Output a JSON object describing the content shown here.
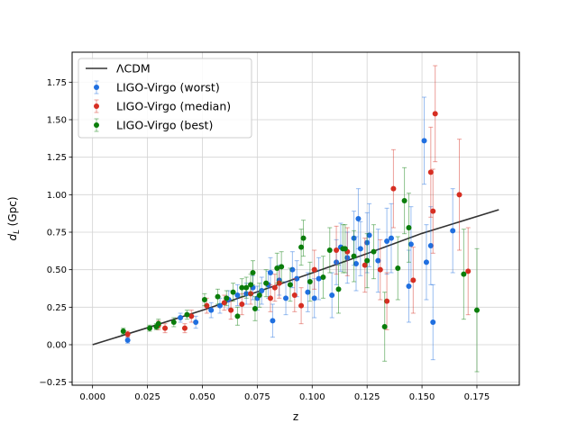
{
  "chart_data": {
    "type": "scatter",
    "xlabel": "z",
    "ylabel_main": "d",
    "ylabel_sub": "L",
    "ylabel_unit": " (Gpc)",
    "xlim": [
      -0.0093,
      0.1943
    ],
    "ylim": [
      -0.27,
      1.95
    ],
    "xticks": [
      0.0,
      0.025,
      0.05,
      0.075,
      0.1,
      0.125,
      0.15,
      0.175
    ],
    "xtick_labels": [
      "0.000",
      "0.025",
      "0.050",
      "0.075",
      "0.100",
      "0.125",
      "0.150",
      "0.175"
    ],
    "yticks": [
      -0.25,
      0.0,
      0.25,
      0.5,
      0.75,
      1.0,
      1.25,
      1.5,
      1.75
    ],
    "ytick_labels": [
      "−0.25",
      "0.00",
      "0.25",
      "0.50",
      "0.75",
      "1.00",
      "1.25",
      "1.50",
      "1.75"
    ],
    "grid": true,
    "legend_position": "top-left",
    "legend": [
      {
        "label": "ΛCDM",
        "kind": "line",
        "color": "#333333"
      },
      {
        "label": "LIGO-Virgo (worst)",
        "kind": "errorbar",
        "color": "#1f6fe0"
      },
      {
        "label": "LIGO-Virgo (median)",
        "kind": "errorbar",
        "color": "#d62e22"
      },
      {
        "label": "LIGO-Virgo (best)",
        "kind": "errorbar",
        "color": "#0a7d0a"
      }
    ],
    "model_line": {
      "name": "ΛCDM",
      "color": "#333333",
      "x": [
        0.0,
        0.025,
        0.05,
        0.075,
        0.1,
        0.125,
        0.15,
        0.185
      ],
      "y": [
        0.0,
        0.113,
        0.23,
        0.352,
        0.478,
        0.608,
        0.742,
        0.9
      ]
    },
    "series": [
      {
        "name": "LIGO-Virgo (worst)",
        "color": "#1f6fe0",
        "points": [
          [
            0.016,
            0.03,
            0.02
          ],
          [
            0.04,
            0.18,
            0.03
          ],
          [
            0.047,
            0.15,
            0.04
          ],
          [
            0.054,
            0.23,
            0.05
          ],
          [
            0.058,
            0.26,
            0.05
          ],
          [
            0.062,
            0.3,
            0.06
          ],
          [
            0.066,
            0.33,
            0.07
          ],
          [
            0.07,
            0.34,
            0.07
          ],
          [
            0.073,
            0.38,
            0.08
          ],
          [
            0.075,
            0.31,
            0.08
          ],
          [
            0.077,
            0.36,
            0.09
          ],
          [
            0.08,
            0.4,
            0.09
          ],
          [
            0.081,
            0.48,
            0.1
          ],
          [
            0.082,
            0.16,
            0.11
          ],
          [
            0.085,
            0.43,
            0.1
          ],
          [
            0.088,
            0.31,
            0.11
          ],
          [
            0.091,
            0.5,
            0.12
          ],
          [
            0.093,
            0.44,
            0.12
          ],
          [
            0.098,
            0.35,
            0.13
          ],
          [
            0.101,
            0.31,
            0.13
          ],
          [
            0.103,
            0.44,
            0.14
          ],
          [
            0.109,
            0.33,
            0.15
          ],
          [
            0.111,
            0.55,
            0.15
          ],
          [
            0.113,
            0.65,
            0.16
          ],
          [
            0.116,
            0.58,
            0.17
          ],
          [
            0.119,
            0.71,
            0.18
          ],
          [
            0.12,
            0.54,
            0.18
          ],
          [
            0.121,
            0.84,
            0.2
          ],
          [
            0.122,
            0.64,
            0.18
          ],
          [
            0.125,
            0.68,
            0.2
          ],
          [
            0.126,
            0.73,
            0.21
          ],
          [
            0.13,
            0.56,
            0.21
          ],
          [
            0.134,
            0.69,
            0.22
          ],
          [
            0.136,
            0.71,
            0.23
          ],
          [
            0.144,
            0.39,
            0.24
          ],
          [
            0.145,
            0.67,
            0.25
          ],
          [
            0.151,
            1.36,
            0.29
          ],
          [
            0.152,
            0.55,
            0.25
          ],
          [
            0.154,
            0.66,
            0.26
          ],
          [
            0.155,
            0.15,
            0.25
          ],
          [
            0.164,
            0.76,
            0.28
          ]
        ]
      },
      {
        "name": "LIGO-Virgo (median)",
        "color": "#d62e22",
        "points": [
          [
            0.016,
            0.07,
            0.02
          ],
          [
            0.03,
            0.13,
            0.03
          ],
          [
            0.033,
            0.11,
            0.03
          ],
          [
            0.042,
            0.11,
            0.03
          ],
          [
            0.045,
            0.19,
            0.04
          ],
          [
            0.052,
            0.26,
            0.05
          ],
          [
            0.06,
            0.28,
            0.05
          ],
          [
            0.063,
            0.23,
            0.06
          ],
          [
            0.068,
            0.27,
            0.07
          ],
          [
            0.072,
            0.34,
            0.07
          ],
          [
            0.081,
            0.31,
            0.09
          ],
          [
            0.083,
            0.38,
            0.09
          ],
          [
            0.085,
            0.41,
            0.1
          ],
          [
            0.092,
            0.33,
            0.11
          ],
          [
            0.095,
            0.26,
            0.12
          ],
          [
            0.101,
            0.5,
            0.13
          ],
          [
            0.111,
            0.63,
            0.16
          ],
          [
            0.116,
            0.62,
            0.16
          ],
          [
            0.124,
            0.53,
            0.18
          ],
          [
            0.131,
            0.5,
            0.2
          ],
          [
            0.134,
            0.29,
            0.19
          ],
          [
            0.137,
            1.04,
            0.26
          ],
          [
            0.146,
            0.43,
            0.22
          ],
          [
            0.154,
            1.15,
            0.3
          ],
          [
            0.155,
            0.89,
            0.28
          ],
          [
            0.156,
            1.54,
            0.32
          ],
          [
            0.167,
            1.0,
            0.37
          ],
          [
            0.171,
            0.49,
            0.29
          ]
        ]
      },
      {
        "name": "LIGO-Virgo (best)",
        "color": "#0a7d0a",
        "points": [
          [
            0.014,
            0.09,
            0.02
          ],
          [
            0.026,
            0.11,
            0.02
          ],
          [
            0.029,
            0.12,
            0.02
          ],
          [
            0.03,
            0.14,
            0.03
          ],
          [
            0.037,
            0.15,
            0.03
          ],
          [
            0.043,
            0.2,
            0.03
          ],
          [
            0.051,
            0.3,
            0.04
          ],
          [
            0.057,
            0.32,
            0.05
          ],
          [
            0.061,
            0.31,
            0.05
          ],
          [
            0.064,
            0.35,
            0.06
          ],
          [
            0.066,
            0.19,
            0.06
          ],
          [
            0.068,
            0.38,
            0.06
          ],
          [
            0.07,
            0.38,
            0.07
          ],
          [
            0.072,
            0.4,
            0.07
          ],
          [
            0.073,
            0.48,
            0.08
          ],
          [
            0.074,
            0.24,
            0.08
          ],
          [
            0.076,
            0.33,
            0.08
          ],
          [
            0.079,
            0.41,
            0.09
          ],
          [
            0.084,
            0.51,
            0.1
          ],
          [
            0.086,
            0.52,
            0.1
          ],
          [
            0.09,
            0.4,
            0.11
          ],
          [
            0.095,
            0.65,
            0.12
          ],
          [
            0.096,
            0.71,
            0.12
          ],
          [
            0.099,
            0.42,
            0.13
          ],
          [
            0.105,
            0.45,
            0.14
          ],
          [
            0.108,
            0.63,
            0.15
          ],
          [
            0.112,
            0.37,
            0.16
          ],
          [
            0.114,
            0.64,
            0.16
          ],
          [
            0.115,
            0.64,
            0.16
          ],
          [
            0.119,
            0.59,
            0.17
          ],
          [
            0.125,
            0.56,
            0.18
          ],
          [
            0.128,
            0.62,
            0.18
          ],
          [
            0.133,
            0.12,
            0.23
          ],
          [
            0.139,
            0.51,
            0.21
          ],
          [
            0.142,
            0.96,
            0.22
          ],
          [
            0.144,
            0.78,
            0.23
          ],
          [
            0.169,
            0.47,
            0.3
          ],
          [
            0.175,
            0.23,
            0.41
          ]
        ]
      }
    ]
  }
}
